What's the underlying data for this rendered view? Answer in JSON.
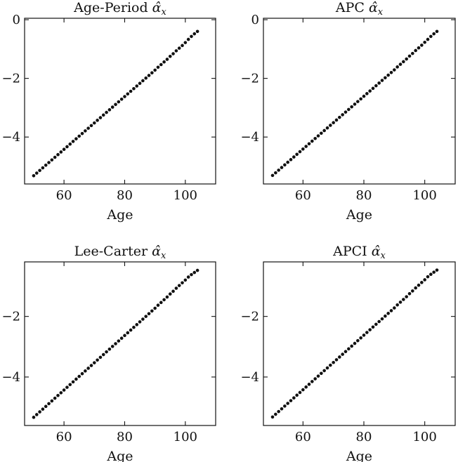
{
  "chart_data": [
    {
      "type": "scatter",
      "title": "Age-Period α̂x",
      "title_main": "Age-Period",
      "xlabel": "Age",
      "ylabel": "",
      "xlim": [
        47,
        110
      ],
      "ylim": [
        -5.6,
        0.05
      ],
      "xticks": [
        60,
        80,
        100
      ],
      "yticks": [
        0,
        -2,
        -4
      ],
      "grid": false,
      "x": [
        50,
        51,
        52,
        53,
        54,
        55,
        56,
        57,
        58,
        59,
        60,
        61,
        62,
        63,
        64,
        65,
        66,
        67,
        68,
        69,
        70,
        71,
        72,
        73,
        74,
        75,
        76,
        77,
        78,
        79,
        80,
        81,
        82,
        83,
        84,
        85,
        86,
        87,
        88,
        89,
        90,
        91,
        92,
        93,
        94,
        95,
        96,
        97,
        98,
        99,
        100,
        101,
        102,
        103,
        104
      ],
      "y": [
        -5.32,
        -5.23,
        -5.14,
        -5.05,
        -4.96,
        -4.87,
        -4.78,
        -4.69,
        -4.6,
        -4.51,
        -4.42,
        -4.33,
        -4.24,
        -4.15,
        -4.06,
        -3.97,
        -3.88,
        -3.79,
        -3.7,
        -3.61,
        -3.52,
        -3.43,
        -3.34,
        -3.25,
        -3.16,
        -3.07,
        -2.98,
        -2.89,
        -2.8,
        -2.71,
        -2.62,
        -2.53,
        -2.44,
        -2.35,
        -2.26,
        -2.17,
        -2.08,
        -1.99,
        -1.9,
        -1.81,
        -1.72,
        -1.62,
        -1.53,
        -1.44,
        -1.35,
        -1.25,
        -1.16,
        -1.06,
        -0.97,
        -0.88,
        -0.78,
        -0.67,
        -0.57,
        -0.48,
        -0.4
      ]
    },
    {
      "type": "scatter",
      "title": "APC α̂x",
      "title_main": "APC",
      "xlabel": "Age",
      "ylabel": "",
      "xlim": [
        47,
        110
      ],
      "ylim": [
        -5.6,
        0.05
      ],
      "xticks": [
        60,
        80,
        100
      ],
      "yticks": [
        0,
        -2,
        -4
      ],
      "grid": false,
      "x": [
        50,
        51,
        52,
        53,
        54,
        55,
        56,
        57,
        58,
        59,
        60,
        61,
        62,
        63,
        64,
        65,
        66,
        67,
        68,
        69,
        70,
        71,
        72,
        73,
        74,
        75,
        76,
        77,
        78,
        79,
        80,
        81,
        82,
        83,
        84,
        85,
        86,
        87,
        88,
        89,
        90,
        91,
        92,
        93,
        94,
        95,
        96,
        97,
        98,
        99,
        100,
        101,
        102,
        103,
        104
      ],
      "y": [
        -5.31,
        -5.22,
        -5.13,
        -5.04,
        -4.95,
        -4.86,
        -4.77,
        -4.68,
        -4.59,
        -4.5,
        -4.41,
        -4.32,
        -4.23,
        -4.14,
        -4.05,
        -3.96,
        -3.87,
        -3.78,
        -3.69,
        -3.6,
        -3.51,
        -3.42,
        -3.33,
        -3.24,
        -3.15,
        -3.06,
        -2.97,
        -2.88,
        -2.79,
        -2.7,
        -2.61,
        -2.52,
        -2.43,
        -2.34,
        -2.25,
        -2.16,
        -2.07,
        -1.98,
        -1.89,
        -1.8,
        -1.71,
        -1.61,
        -1.52,
        -1.43,
        -1.34,
        -1.24,
        -1.15,
        -1.05,
        -0.96,
        -0.87,
        -0.77,
        -0.67,
        -0.57,
        -0.48,
        -0.4
      ]
    },
    {
      "type": "scatter",
      "title": "Lee-Carter α̂x",
      "title_main": "Lee-Carter",
      "xlabel": "Age",
      "ylabel": "",
      "xlim": [
        47,
        110
      ],
      "ylim": [
        -5.6,
        -0.2
      ],
      "xticks": [
        60,
        80,
        100
      ],
      "yticks": [
        -2,
        -4
      ],
      "grid": false,
      "x": [
        50,
        51,
        52,
        53,
        54,
        55,
        56,
        57,
        58,
        59,
        60,
        61,
        62,
        63,
        64,
        65,
        66,
        67,
        68,
        69,
        70,
        71,
        72,
        73,
        74,
        75,
        76,
        77,
        78,
        79,
        80,
        81,
        82,
        83,
        84,
        85,
        86,
        87,
        88,
        89,
        90,
        91,
        92,
        93,
        94,
        95,
        96,
        97,
        98,
        99,
        100,
        101,
        102,
        103,
        104
      ],
      "y": [
        -5.33,
        -5.24,
        -5.15,
        -5.06,
        -4.97,
        -4.88,
        -4.79,
        -4.7,
        -4.61,
        -4.52,
        -4.43,
        -4.34,
        -4.25,
        -4.16,
        -4.07,
        -3.98,
        -3.89,
        -3.8,
        -3.71,
        -3.62,
        -3.53,
        -3.44,
        -3.35,
        -3.26,
        -3.17,
        -3.08,
        -2.99,
        -2.9,
        -2.81,
        -2.72,
        -2.63,
        -2.54,
        -2.45,
        -2.36,
        -2.27,
        -2.18,
        -2.09,
        -2.0,
        -1.91,
        -1.82,
        -1.73,
        -1.63,
        -1.54,
        -1.45,
        -1.36,
        -1.26,
        -1.17,
        -1.07,
        -0.98,
        -0.89,
        -0.8,
        -0.7,
        -0.62,
        -0.55,
        -0.48
      ]
    },
    {
      "type": "scatter",
      "title": "APCI α̂x",
      "title_main": "APCI",
      "xlabel": "Age",
      "ylabel": "",
      "xlim": [
        47,
        110
      ],
      "ylim": [
        -5.6,
        -0.2
      ],
      "xticks": [
        60,
        80,
        100
      ],
      "yticks": [
        -2,
        -4
      ],
      "grid": false,
      "x": [
        50,
        51,
        52,
        53,
        54,
        55,
        56,
        57,
        58,
        59,
        60,
        61,
        62,
        63,
        64,
        65,
        66,
        67,
        68,
        69,
        70,
        71,
        72,
        73,
        74,
        75,
        76,
        77,
        78,
        79,
        80,
        81,
        82,
        83,
        84,
        85,
        86,
        87,
        88,
        89,
        90,
        91,
        92,
        93,
        94,
        95,
        96,
        97,
        98,
        99,
        100,
        101,
        102,
        103,
        104
      ],
      "y": [
        -5.32,
        -5.23,
        -5.14,
        -5.05,
        -4.96,
        -4.87,
        -4.78,
        -4.69,
        -4.6,
        -4.51,
        -4.42,
        -4.33,
        -4.24,
        -4.15,
        -4.06,
        -3.97,
        -3.88,
        -3.79,
        -3.7,
        -3.61,
        -3.52,
        -3.43,
        -3.34,
        -3.25,
        -3.16,
        -3.07,
        -2.98,
        -2.89,
        -2.8,
        -2.71,
        -2.62,
        -2.53,
        -2.44,
        -2.35,
        -2.26,
        -2.17,
        -2.08,
        -1.99,
        -1.9,
        -1.81,
        -1.72,
        -1.62,
        -1.53,
        -1.44,
        -1.35,
        -1.25,
        -1.16,
        -1.06,
        -0.97,
        -0.88,
        -0.79,
        -0.69,
        -0.61,
        -0.54,
        -0.47
      ]
    }
  ]
}
